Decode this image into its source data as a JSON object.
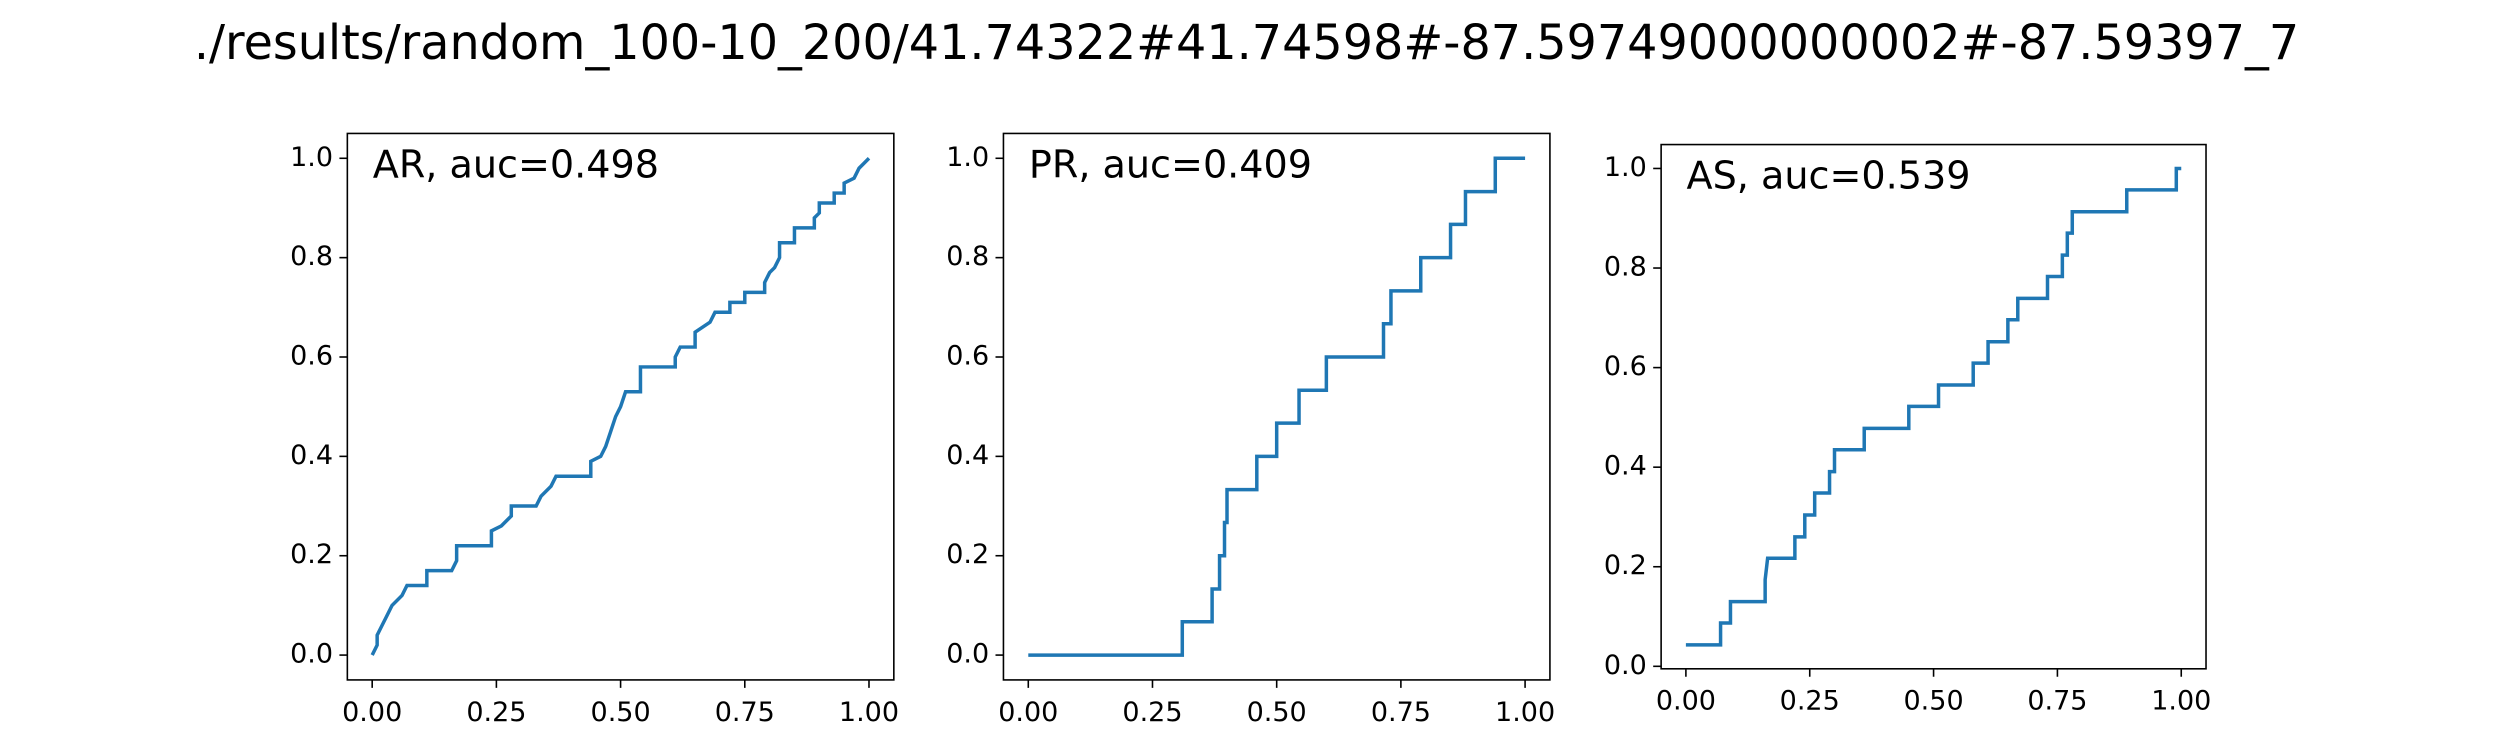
{
  "suptitle": "./results/random_100-10_200/41.74322#41.74598#-87.59749000000002#-87.59397_7",
  "chart_data": [
    {
      "type": "line",
      "annotation": "AR, auc=0.498",
      "color": "#1f77b4",
      "xlim": [
        -0.05,
        1.05
      ],
      "ylim": [
        -0.05,
        1.05
      ],
      "xticks": [
        {
          "value": 0,
          "label": "0.00"
        },
        {
          "value": 0.25,
          "label": "0.25"
        },
        {
          "value": 0.5,
          "label": "0.50"
        },
        {
          "value": 0.75,
          "label": "0.75"
        },
        {
          "value": 1,
          "label": "1.00"
        }
      ],
      "yticks": [
        {
          "value": 0,
          "label": "0.0"
        },
        0.2,
        0.4,
        0.6,
        0.8,
        {
          "value": 1,
          "label": "1.0"
        }
      ],
      "x": [
        0,
        0.01,
        0.01,
        0.02,
        0.03,
        0.04,
        0.06,
        0.07,
        0.11,
        0.11,
        0.16,
        0.17,
        0.17,
        0.24,
        0.24,
        0.26,
        0.28,
        0.28,
        0.33,
        0.34,
        0.36,
        0.37,
        0.44,
        0.44,
        0.46,
        0.47,
        0.48,
        0.49,
        0.5,
        0.51,
        0.54,
        0.54,
        0.61,
        0.61,
        0.62,
        0.65,
        0.65,
        0.68,
        0.69,
        0.72,
        0.72,
        0.75,
        0.75,
        0.79,
        0.79,
        0.8,
        0.81,
        0.82,
        0.82,
        0.85,
        0.85,
        0.89,
        0.89,
        0.9,
        0.9,
        0.93,
        0.93,
        0.95,
        0.95,
        0.97,
        0.98,
        0.99,
        1
      ],
      "y": [
        0,
        0.02,
        0.04,
        0.06,
        0.08,
        0.1,
        0.12,
        0.14,
        0.14,
        0.17,
        0.17,
        0.19,
        0.22,
        0.22,
        0.25,
        0.26,
        0.28,
        0.3,
        0.3,
        0.32,
        0.34,
        0.36,
        0.36,
        0.39,
        0.4,
        0.42,
        0.45,
        0.48,
        0.5,
        0.53,
        0.53,
        0.58,
        0.58,
        0.6,
        0.62,
        0.62,
        0.65,
        0.67,
        0.69,
        0.69,
        0.71,
        0.71,
        0.73,
        0.73,
        0.75,
        0.77,
        0.78,
        0.8,
        0.83,
        0.83,
        0.86,
        0.86,
        0.88,
        0.89,
        0.91,
        0.91,
        0.93,
        0.93,
        0.95,
        0.96,
        0.98,
        0.99,
        1
      ]
    },
    {
      "type": "line",
      "annotation": "PR, auc=0.409",
      "color": "#1f77b4",
      "xlim": [
        -0.05,
        1.05
      ],
      "ylim": [
        -0.05,
        1.05
      ],
      "xticks": [
        {
          "value": 0,
          "label": "0.00"
        },
        {
          "value": 0.25,
          "label": "0.25"
        },
        {
          "value": 0.5,
          "label": "0.50"
        },
        {
          "value": 0.75,
          "label": "0.75"
        },
        {
          "value": 1,
          "label": "1.00"
        }
      ],
      "yticks": [
        {
          "value": 0,
          "label": "0.0"
        },
        0.2,
        0.4,
        0.6,
        0.8,
        {
          "value": 1,
          "label": "1.0"
        }
      ],
      "x": [
        0,
        0.31,
        0.31,
        0.37,
        0.37,
        0.385,
        0.385,
        0.395,
        0.395,
        0.4,
        0.4,
        0.46,
        0.46,
        0.5,
        0.5,
        0.545,
        0.545,
        0.6,
        0.6,
        0.715,
        0.715,
        0.73,
        0.73,
        0.79,
        0.79,
        0.85,
        0.85,
        0.88,
        0.88,
        0.94,
        0.94,
        1
      ],
      "y": [
        0,
        0,
        0.067,
        0.067,
        0.133,
        0.133,
        0.2,
        0.2,
        0.267,
        0.267,
        0.333,
        0.333,
        0.4,
        0.4,
        0.467,
        0.467,
        0.533,
        0.533,
        0.6,
        0.6,
        0.667,
        0.667,
        0.733,
        0.733,
        0.8,
        0.8,
        0.867,
        0.867,
        0.933,
        0.933,
        1,
        1
      ]
    },
    {
      "type": "line",
      "annotation": "AS, auc=0.539",
      "color": "#1f77b4",
      "xlim": [
        -0.05,
        1.05
      ],
      "ylim": [
        -0.005,
        1.048
      ],
      "xticks": [
        {
          "value": 0,
          "label": "0.00"
        },
        {
          "value": 0.25,
          "label": "0.25"
        },
        {
          "value": 0.5,
          "label": "0.50"
        },
        {
          "value": 0.75,
          "label": "0.75"
        },
        {
          "value": 1,
          "label": "1.00"
        }
      ],
      "yticks": [
        {
          "value": 0,
          "label": "0.0"
        },
        0.2,
        0.4,
        0.6,
        0.8,
        {
          "value": 1,
          "label": "1.0"
        }
      ],
      "x": [
        0,
        0.07,
        0.07,
        0.09,
        0.09,
        0.16,
        0.16,
        0.165,
        0.22,
        0.22,
        0.24,
        0.24,
        0.26,
        0.26,
        0.29,
        0.29,
        0.3,
        0.3,
        0.36,
        0.36,
        0.45,
        0.45,
        0.51,
        0.51,
        0.58,
        0.58,
        0.61,
        0.61,
        0.65,
        0.65,
        0.67,
        0.67,
        0.73,
        0.73,
        0.76,
        0.76,
        0.77,
        0.77,
        0.78,
        0.78,
        0.89,
        0.89,
        0.99,
        0.99,
        1
      ],
      "y": [
        0.043,
        0.043,
        0.087,
        0.087,
        0.13,
        0.13,
        0.174,
        0.217,
        0.217,
        0.26,
        0.26,
        0.304,
        0.304,
        0.348,
        0.348,
        0.391,
        0.391,
        0.435,
        0.435,
        0.478,
        0.478,
        0.522,
        0.522,
        0.565,
        0.565,
        0.609,
        0.609,
        0.652,
        0.652,
        0.696,
        0.696,
        0.739,
        0.739,
        0.783,
        0.783,
        0.826,
        0.826,
        0.87,
        0.87,
        0.913,
        0.913,
        0.957,
        0.957,
        1,
        1
      ]
    }
  ]
}
